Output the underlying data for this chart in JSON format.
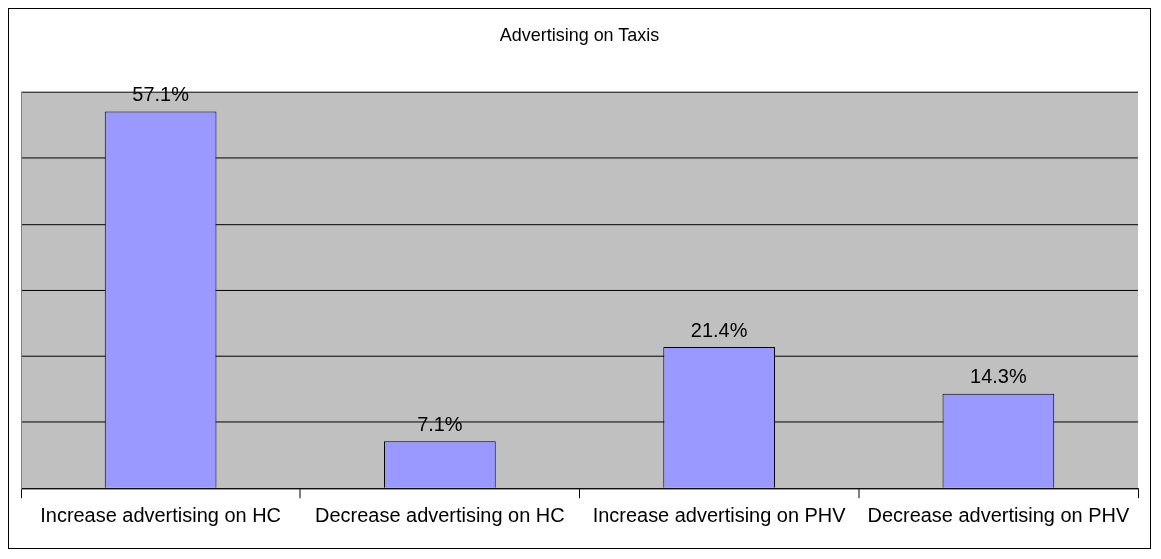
{
  "chart_data": {
    "type": "bar",
    "title": "Advertising on Taxis",
    "categories": [
      "Increase advertising on HC",
      "Decrease advertising on HC",
      "Increase advertising on PHV",
      "Decrease advertising on PHV"
    ],
    "values": [
      57.1,
      7.1,
      21.4,
      14.3
    ],
    "value_labels": [
      "57.1%",
      "7.1%",
      "21.4%",
      "14.3%"
    ],
    "color": "#9999ff",
    "ylim": [
      0,
      60
    ],
    "yticks": [
      {
        "value": 0,
        "label": null
      },
      {
        "value": 10,
        "label": null
      },
      {
        "value": 20,
        "label": null
      },
      {
        "value": 30,
        "label": null
      },
      {
        "value": 40,
        "label": null
      },
      {
        "value": 50,
        "label": null
      },
      {
        "value": 60,
        "label": null
      }
    ],
    "tick_labels": "x",
    "grid": "y",
    "legend": false
  }
}
